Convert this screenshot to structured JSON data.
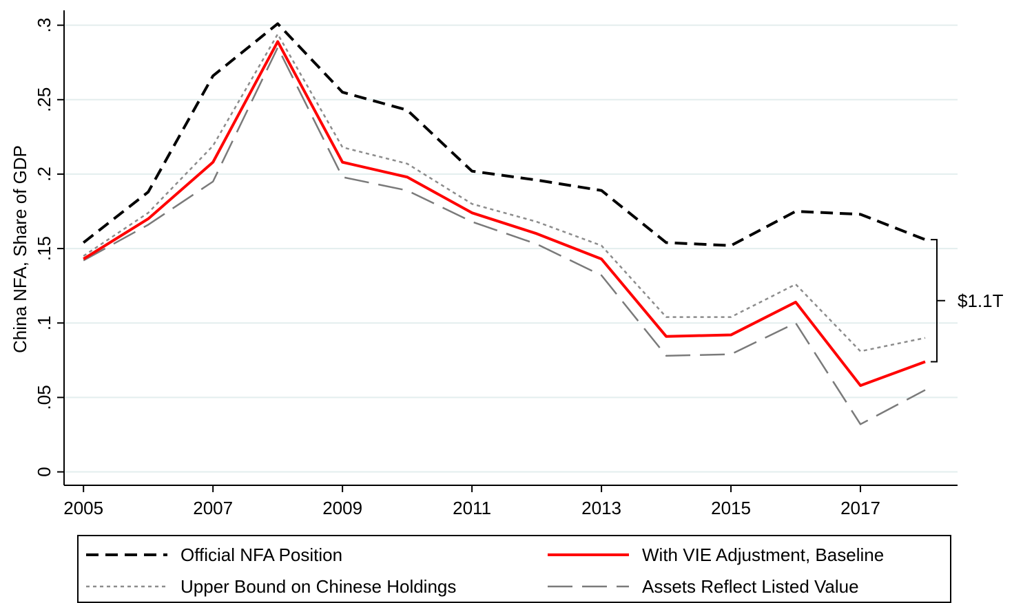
{
  "chart_data": {
    "type": "line",
    "y_label": "China NFA, Share of GDP",
    "x": [
      2005,
      2006,
      2007,
      2008,
      2009,
      2010,
      2011,
      2012,
      2013,
      2014,
      2015,
      2016,
      2017,
      2018
    ],
    "series": [
      {
        "name": "Official NFA Position",
        "color": "#000000",
        "dash": "dashed",
        "values": [
          0.154,
          0.188,
          0.266,
          0.301,
          0.255,
          0.243,
          0.202,
          0.196,
          0.189,
          0.154,
          0.152,
          0.175,
          0.173,
          0.156
        ]
      },
      {
        "name": "With VIE Adjustment, Baseline",
        "color": "#ff0000",
        "dash": "solid",
        "values": [
          0.143,
          0.17,
          0.208,
          0.289,
          0.208,
          0.198,
          0.174,
          0.16,
          0.143,
          0.091,
          0.092,
          0.114,
          0.058,
          0.074
        ]
      },
      {
        "name": "Upper Bound on Chinese Holdings",
        "color": "#8c8c8c",
        "dash": "dotted",
        "values": [
          0.145,
          0.174,
          0.219,
          0.294,
          0.218,
          0.207,
          0.18,
          0.168,
          0.152,
          0.104,
          0.104,
          0.126,
          0.081,
          0.09
        ]
      },
      {
        "name": "Assets Reflect Listed Value",
        "color": "#7a7a7a",
        "dash": "longdash",
        "values": [
          0.142,
          0.166,
          0.195,
          0.285,
          0.198,
          0.189,
          0.168,
          0.153,
          0.132,
          0.078,
          0.079,
          0.1,
          0.032,
          0.055
        ]
      }
    ],
    "annotation": "$1.1T",
    "xlim": [
      2004.7,
      2018.5
    ],
    "xticks": [
      2005,
      2007,
      2009,
      2011,
      2013,
      2015,
      2017
    ],
    "ylim": [
      -0.009,
      0.31
    ],
    "yticks": [
      0,
      {
        "value": 0.05,
        "label": ".05"
      },
      {
        "value": 0.1,
        "label": ".1"
      },
      {
        "value": 0.15,
        "label": ".15"
      },
      {
        "value": 0.2,
        "label": ".2"
      },
      {
        "value": 0.25,
        "label": ".25"
      },
      {
        "value": 0.3,
        "label": ".3"
      }
    ],
    "grid": true,
    "legend_position": "bottom"
  }
}
